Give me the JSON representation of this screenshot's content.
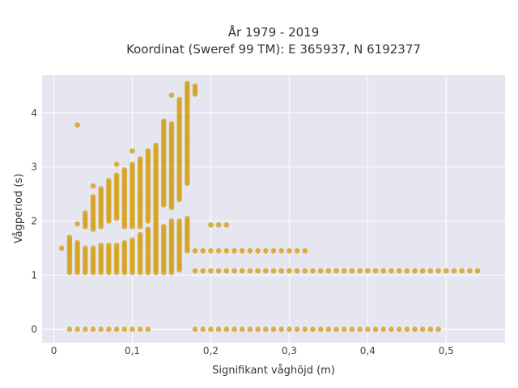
{
  "chart_data": {
    "type": "scatter",
    "title_lines": [
      "År 1979 - 2019",
      "Koordinat (Sweref 99 TM): E 365937, N 6192377"
    ],
    "xlabel": "Signifikant våghöjd (m)",
    "ylabel": "Vågperiod (s)",
    "xlim": [
      -0.015,
      0.575
    ],
    "ylim": [
      -0.25,
      4.7
    ],
    "x_ticks": [
      {
        "value": 0,
        "label": "0"
      },
      {
        "value": 0.1,
        "label": "0,1"
      },
      {
        "value": 0.2,
        "label": "0,2"
      },
      {
        "value": 0.3,
        "label": "0,3"
      },
      {
        "value": 0.4,
        "label": "0,4"
      },
      {
        "value": 0.5,
        "label": "0,5"
      }
    ],
    "y_ticks": [
      {
        "value": 0,
        "label": "0"
      },
      {
        "value": 1,
        "label": "1"
      },
      {
        "value": 2,
        "label": "2"
      },
      {
        "value": 3,
        "label": "3"
      },
      {
        "value": 4,
        "label": "4"
      }
    ],
    "grid": true,
    "marker_color": "#d4a017",
    "background_color": "#e5e6ef",
    "columns": [
      {
        "x": 0.01,
        "ranges": [
          [
            1.5,
            1.5
          ]
        ]
      },
      {
        "x": 0.02,
        "ranges": [
          [
            0,
            0
          ],
          [
            1.05,
            1.7
          ]
        ]
      },
      {
        "x": 0.03,
        "ranges": [
          [
            0,
            0
          ],
          [
            1.05,
            1.6
          ],
          [
            1.95,
            1.95
          ],
          [
            3.78,
            3.78
          ]
        ]
      },
      {
        "x": 0.04,
        "ranges": [
          [
            0,
            0
          ],
          [
            1.05,
            1.5
          ],
          [
            1.9,
            2.15
          ]
        ]
      },
      {
        "x": 0.05,
        "ranges": [
          [
            0,
            0
          ],
          [
            1.05,
            1.5
          ],
          [
            1.85,
            2.45
          ],
          [
            2.65,
            2.65
          ]
        ]
      },
      {
        "x": 0.06,
        "ranges": [
          [
            0,
            0
          ],
          [
            1.05,
            1.55
          ],
          [
            1.9,
            2.55
          ],
          [
            2.6,
            2.6
          ]
        ]
      },
      {
        "x": 0.07,
        "ranges": [
          [
            0,
            0
          ],
          [
            1.05,
            1.55
          ],
          [
            2.0,
            2.75
          ]
        ]
      },
      {
        "x": 0.08,
        "ranges": [
          [
            0,
            0
          ],
          [
            1.05,
            1.55
          ],
          [
            2.05,
            2.85
          ],
          [
            3.05,
            3.05
          ]
        ]
      },
      {
        "x": 0.09,
        "ranges": [
          [
            0,
            0
          ],
          [
            1.05,
            1.6
          ],
          [
            1.9,
            2.95
          ]
        ]
      },
      {
        "x": 0.1,
        "ranges": [
          [
            0,
            0
          ],
          [
            1.05,
            1.65
          ],
          [
            1.9,
            3.05
          ],
          [
            3.3,
            3.3
          ]
        ]
      },
      {
        "x": 0.11,
        "ranges": [
          [
            0,
            0
          ],
          [
            1.05,
            1.75
          ],
          [
            1.9,
            3.15
          ]
        ]
      },
      {
        "x": 0.12,
        "ranges": [
          [
            0,
            0
          ],
          [
            1.05,
            1.85
          ],
          [
            2.0,
            3.3
          ]
        ]
      },
      {
        "x": 0.13,
        "ranges": [
          [
            1.05,
            1.95
          ],
          [
            2.0,
            3.4
          ]
        ]
      },
      {
        "x": 0.14,
        "ranges": [
          [
            1.05,
            1.9
          ],
          [
            2.3,
            3.85
          ]
        ]
      },
      {
        "x": 0.15,
        "ranges": [
          [
            1.05,
            2.0
          ],
          [
            2.25,
            3.8
          ],
          [
            4.33,
            4.33
          ]
        ]
      },
      {
        "x": 0.16,
        "ranges": [
          [
            1.1,
            2.0
          ],
          [
            2.4,
            4.25
          ]
        ]
      },
      {
        "x": 0.17,
        "ranges": [
          [
            1.45,
            2.05
          ],
          [
            2.7,
            4.55
          ]
        ]
      },
      {
        "x": 0.18,
        "ranges": [
          [
            0,
            0
          ],
          [
            1.08,
            1.08
          ],
          [
            1.45,
            1.45
          ],
          [
            4.35,
            4.5
          ]
        ]
      },
      {
        "x": 0.19,
        "ranges": [
          [
            0,
            0
          ],
          [
            1.08,
            1.08
          ],
          [
            1.45,
            1.45
          ]
        ]
      },
      {
        "x": 0.2,
        "ranges": [
          [
            0,
            0
          ],
          [
            1.08,
            1.08
          ],
          [
            1.45,
            1.45
          ],
          [
            1.93,
            1.93
          ]
        ]
      },
      {
        "x": 0.21,
        "ranges": [
          [
            0,
            0
          ],
          [
            1.08,
            1.08
          ],
          [
            1.45,
            1.45
          ],
          [
            1.93,
            1.93
          ]
        ]
      },
      {
        "x": 0.22,
        "ranges": [
          [
            0,
            0
          ],
          [
            1.08,
            1.08
          ],
          [
            1.45,
            1.45
          ],
          [
            1.93,
            1.93
          ]
        ]
      },
      {
        "x": 0.23,
        "ranges": [
          [
            0,
            0
          ],
          [
            1.08,
            1.08
          ],
          [
            1.45,
            1.45
          ]
        ]
      },
      {
        "x": 0.24,
        "ranges": [
          [
            0,
            0
          ],
          [
            1.08,
            1.08
          ],
          [
            1.45,
            1.45
          ]
        ]
      },
      {
        "x": 0.25,
        "ranges": [
          [
            0,
            0
          ],
          [
            1.08,
            1.08
          ],
          [
            1.45,
            1.45
          ]
        ]
      },
      {
        "x": 0.26,
        "ranges": [
          [
            0,
            0
          ],
          [
            1.08,
            1.08
          ],
          [
            1.45,
            1.45
          ]
        ]
      },
      {
        "x": 0.27,
        "ranges": [
          [
            0,
            0
          ],
          [
            1.08,
            1.08
          ],
          [
            1.45,
            1.45
          ]
        ]
      },
      {
        "x": 0.28,
        "ranges": [
          [
            0,
            0
          ],
          [
            1.08,
            1.08
          ],
          [
            1.45,
            1.45
          ]
        ]
      },
      {
        "x": 0.29,
        "ranges": [
          [
            0,
            0
          ],
          [
            1.08,
            1.08
          ],
          [
            1.45,
            1.45
          ]
        ]
      },
      {
        "x": 0.3,
        "ranges": [
          [
            0,
            0
          ],
          [
            1.08,
            1.08
          ],
          [
            1.45,
            1.45
          ]
        ]
      },
      {
        "x": 0.31,
        "ranges": [
          [
            0,
            0
          ],
          [
            1.08,
            1.08
          ],
          [
            1.45,
            1.45
          ]
        ]
      },
      {
        "x": 0.32,
        "ranges": [
          [
            0,
            0
          ],
          [
            1.08,
            1.08
          ],
          [
            1.45,
            1.45
          ]
        ]
      },
      {
        "x": 0.33,
        "ranges": [
          [
            0,
            0
          ],
          [
            1.08,
            1.08
          ]
        ]
      },
      {
        "x": 0.34,
        "ranges": [
          [
            0,
            0
          ],
          [
            1.08,
            1.08
          ]
        ]
      },
      {
        "x": 0.35,
        "ranges": [
          [
            0,
            0
          ],
          [
            1.08,
            1.08
          ]
        ]
      },
      {
        "x": 0.36,
        "ranges": [
          [
            0,
            0
          ],
          [
            1.08,
            1.08
          ]
        ]
      },
      {
        "x": 0.37,
        "ranges": [
          [
            0,
            0
          ],
          [
            1.08,
            1.08
          ]
        ]
      },
      {
        "x": 0.38,
        "ranges": [
          [
            0,
            0
          ],
          [
            1.08,
            1.08
          ]
        ]
      },
      {
        "x": 0.39,
        "ranges": [
          [
            0,
            0
          ],
          [
            1.08,
            1.08
          ]
        ]
      },
      {
        "x": 0.4,
        "ranges": [
          [
            0,
            0
          ],
          [
            1.08,
            1.08
          ]
        ]
      },
      {
        "x": 0.41,
        "ranges": [
          [
            0,
            0
          ],
          [
            1.08,
            1.08
          ]
        ]
      },
      {
        "x": 0.42,
        "ranges": [
          [
            0,
            0
          ],
          [
            1.08,
            1.08
          ]
        ]
      },
      {
        "x": 0.43,
        "ranges": [
          [
            0,
            0
          ],
          [
            1.08,
            1.08
          ]
        ]
      },
      {
        "x": 0.44,
        "ranges": [
          [
            0,
            0
          ],
          [
            1.08,
            1.08
          ]
        ]
      },
      {
        "x": 0.45,
        "ranges": [
          [
            0,
            0
          ],
          [
            1.08,
            1.08
          ]
        ]
      },
      {
        "x": 0.46,
        "ranges": [
          [
            0,
            0
          ],
          [
            1.08,
            1.08
          ]
        ]
      },
      {
        "x": 0.47,
        "ranges": [
          [
            0,
            0
          ],
          [
            1.08,
            1.08
          ]
        ]
      },
      {
        "x": 0.48,
        "ranges": [
          [
            0,
            0
          ],
          [
            1.08,
            1.08
          ]
        ]
      },
      {
        "x": 0.49,
        "ranges": [
          [
            0,
            0
          ],
          [
            1.08,
            1.08
          ]
        ]
      },
      {
        "x": 0.5,
        "ranges": [
          [
            1.08,
            1.08
          ]
        ]
      },
      {
        "x": 0.51,
        "ranges": [
          [
            1.08,
            1.08
          ]
        ]
      },
      {
        "x": 0.52,
        "ranges": [
          [
            1.08,
            1.08
          ]
        ]
      },
      {
        "x": 0.53,
        "ranges": [
          [
            1.08,
            1.08
          ]
        ]
      },
      {
        "x": 0.54,
        "ranges": [
          [
            1.08,
            1.08
          ]
        ]
      }
    ]
  }
}
